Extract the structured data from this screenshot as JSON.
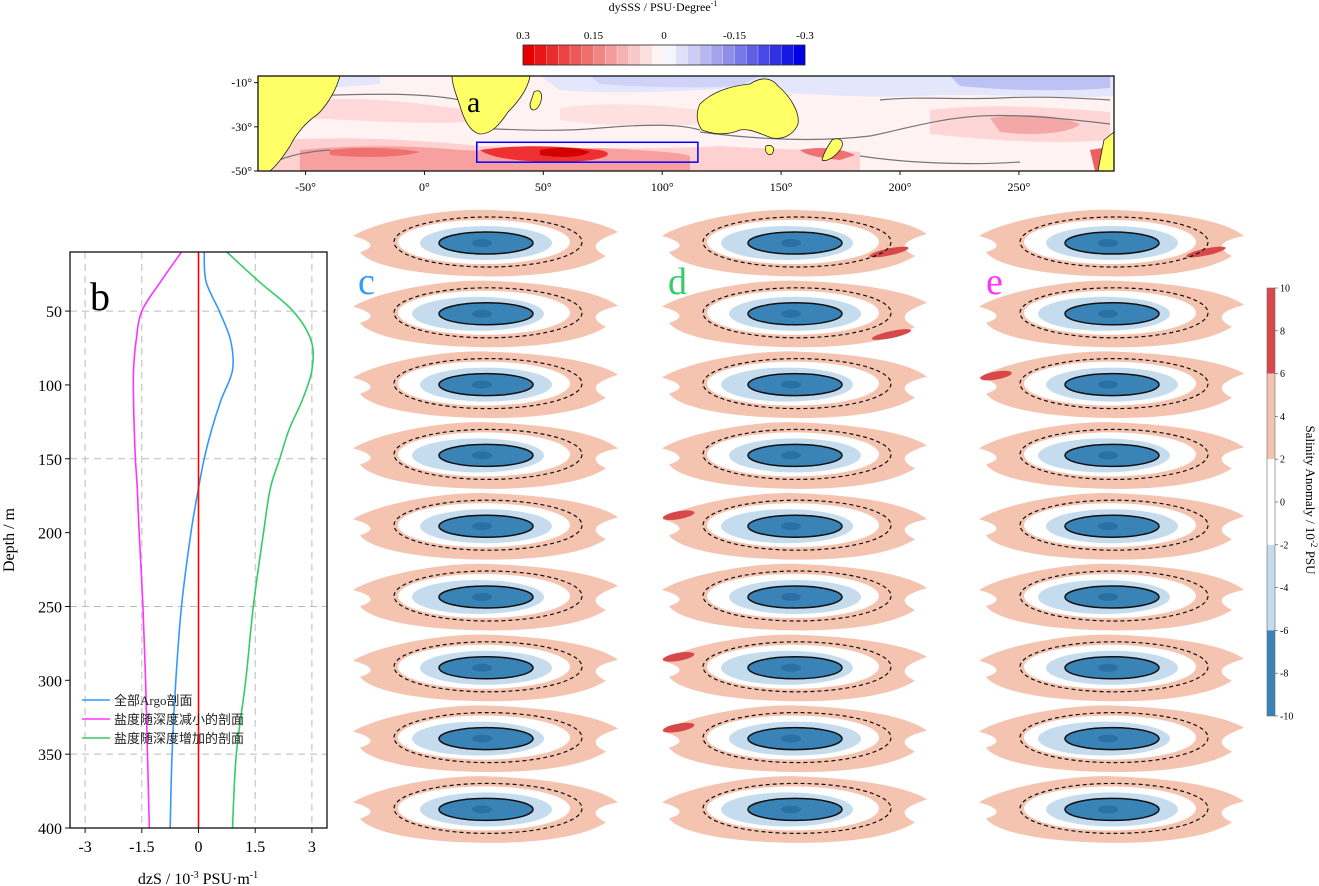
{
  "chart_data": [
    {
      "type": "heatmap",
      "panel_label": "a",
      "colorbar": {
        "title": "dySSS / PSU·Degree",
        "title_sup": "-1",
        "ticks": [
          "0.3",
          "0.15",
          "0",
          "-0.15",
          "-0.3"
        ],
        "values": [
          0.3,
          0.15,
          0,
          -0.15,
          -0.3
        ],
        "colors": [
          "#e60000",
          "#f08080",
          "#ffffff",
          "#8a8ae6",
          "#0000e6"
        ]
      },
      "y_ticks": [
        "-10°",
        "-30°",
        "-50°"
      ],
      "lat_values": [
        -10,
        -30,
        -50
      ],
      "x_ticks": [
        "-50°",
        "0°",
        "50°",
        "100°",
        "150°",
        "200°",
        "250°"
      ],
      "lon_values": [
        -50,
        0,
        50,
        100,
        150,
        200,
        250
      ],
      "xlim": [
        -70,
        290
      ],
      "ylim": [
        -50,
        -7
      ],
      "highlight_box": {
        "lon": [
          22,
          115
        ],
        "lat": [
          -37,
          -46
        ],
        "color": "#0000ff"
      }
    },
    {
      "type": "line",
      "panel_label": "b",
      "xlabel": "dzS / 10",
      "xlabel_sup": "-3",
      "xlabel_tail": " PSU·m",
      "xlabel_tail_sup": "-1",
      "ylabel": "Depth / m",
      "xlim": [
        -3.4,
        3.4
      ],
      "ylim": [
        400,
        10
      ],
      "x_ticks": [
        "-3",
        "-1.5",
        "0",
        "1.5",
        "3"
      ],
      "x_tick_values": [
        -3,
        -1.5,
        0,
        1.5,
        3
      ],
      "y_ticks": [
        "50",
        "100",
        "150",
        "200",
        "250",
        "300",
        "350",
        "400"
      ],
      "y_tick_values": [
        50,
        100,
        150,
        200,
        250,
        300,
        350,
        400
      ],
      "series": [
        {
          "name": "全部Argo剖面",
          "color": "#3399ff",
          "depth": [
            10,
            30,
            50,
            70,
            90,
            110,
            130,
            150,
            170,
            200,
            250,
            300,
            350,
            400
          ],
          "values": [
            0.15,
            0.2,
            0.55,
            0.85,
            0.9,
            0.6,
            0.35,
            0.15,
            0,
            -0.2,
            -0.45,
            -0.6,
            -0.7,
            -0.75
          ]
        },
        {
          "name": "盐度随深度减小的剖面",
          "color": "#ff33ff",
          "depth": [
            10,
            30,
            50,
            70,
            90,
            110,
            130,
            150,
            170,
            200,
            250,
            300,
            350,
            400
          ],
          "values": [
            -0.45,
            -1.0,
            -1.5,
            -1.65,
            -1.72,
            -1.72,
            -1.7,
            -1.67,
            -1.62,
            -1.57,
            -1.47,
            -1.4,
            -1.35,
            -1.3
          ]
        },
        {
          "name": "盐度随深度增加的剖面",
          "color": "#33cc66",
          "depth": [
            10,
            30,
            50,
            70,
            90,
            110,
            130,
            150,
            170,
            200,
            250,
            300,
            350,
            400
          ],
          "values": [
            0.75,
            1.6,
            2.5,
            2.98,
            3.0,
            2.75,
            2.4,
            2.15,
            1.9,
            1.72,
            1.45,
            1.25,
            1.0,
            0.9
          ]
        },
        {
          "name": "",
          "color": "#ff0000",
          "depth": [
            10,
            400
          ],
          "values": [
            0,
            0
          ]
        }
      ]
    },
    {
      "type": "heatmap",
      "panels": [
        "c",
        "d",
        "e"
      ],
      "panel_colors": [
        "#3399ff",
        "#33cc66",
        "#ff33ff"
      ],
      "levels": 9,
      "colorbar": {
        "title": "Salinity Anomaly / 10",
        "title_sup": "-2",
        "title_tail": " PSU",
        "ticks": [
          "10",
          "8",
          "6",
          "4",
          "2",
          "0",
          "-2",
          "-4",
          "-6",
          "-8",
          "-10"
        ],
        "bands": [
          {
            "from": 6,
            "to": 10,
            "color": "#d6484a"
          },
          {
            "from": 2,
            "to": 6,
            "color": "#f5c4b0"
          },
          {
            "from": -2,
            "to": 2,
            "color": "#ffffff"
          },
          {
            "from": -6,
            "to": -2,
            "color": "#c5dcee"
          },
          {
            "from": -10,
            "to": -6,
            "color": "#3a83b6"
          }
        ]
      }
    }
  ]
}
